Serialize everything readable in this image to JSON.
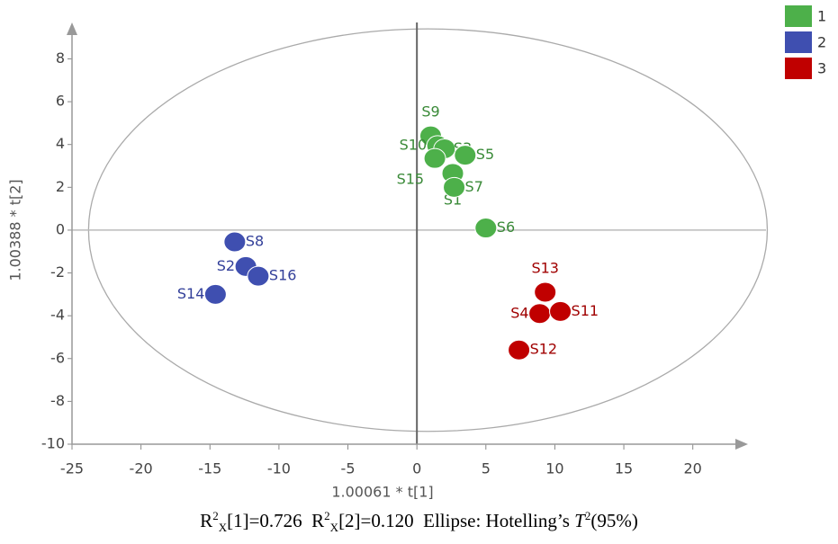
{
  "chart_data": {
    "type": "scatter",
    "x_label": "1.00061 * t[1]",
    "y_label": "1.00388 * t[2]",
    "xlim": [
      -25,
      24
    ],
    "ylim": [
      -10,
      9.7
    ],
    "xticks": [
      -25,
      -20,
      -15,
      -10,
      -5,
      0,
      5,
      10,
      15,
      20
    ],
    "yticks": [
      -10,
      -8,
      -6,
      -4,
      -2,
      0,
      2,
      4,
      6,
      8
    ],
    "ellipse": {
      "cx": 0.8,
      "cy": 0,
      "rx": 24.6,
      "ry": 9.4
    },
    "legend": "top-right",
    "series": [
      {
        "name": "1",
        "color": "#4db04a",
        "labels": [
          "S9",
          "S10",
          "S3",
          "S5",
          "S15",
          "S1",
          "S7",
          "S6"
        ],
        "x": [
          1.0,
          1.5,
          2.0,
          3.5,
          1.3,
          2.6,
          2.7,
          5.0
        ],
        "values": [
          4.4,
          3.95,
          3.8,
          3.5,
          3.35,
          2.65,
          2.0,
          0.1
        ]
      },
      {
        "name": "2",
        "color": "#3f4fb0",
        "labels": [
          "S8",
          "S2",
          "S16",
          "S14"
        ],
        "x": [
          -13.2,
          -12.4,
          -11.5,
          -14.6
        ],
        "values": [
          -0.55,
          -1.7,
          -2.15,
          -3.0
        ]
      },
      {
        "name": "3",
        "color": "#c00000",
        "labels": [
          "S13",
          "S4",
          "S11",
          "S12"
        ],
        "x": [
          9.3,
          8.9,
          10.4,
          7.4
        ],
        "values": [
          -2.9,
          -3.9,
          -3.8,
          -5.6
        ]
      }
    ],
    "caption": [
      "R",
      "2",
      "X",
      "[1]=0.726  R",
      "2",
      "X",
      "[2]=0.120  Ellipse: Hotelling’s ",
      "T",
      "2",
      "(95%)"
    ]
  }
}
